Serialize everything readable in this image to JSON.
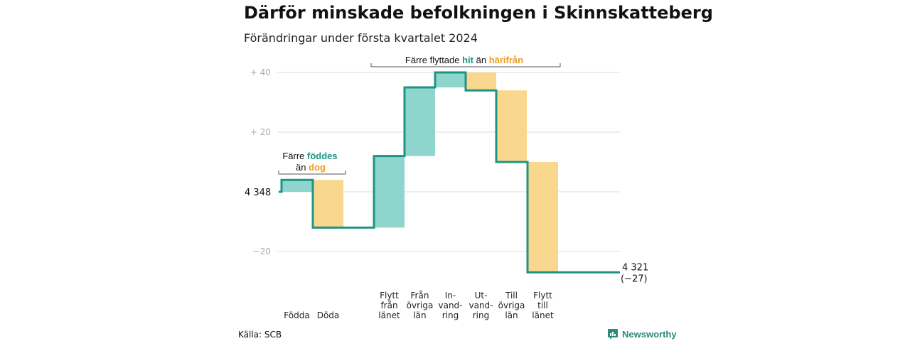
{
  "title": "Därför minskade befolkningen i Skinnskatteberg",
  "subtitle": "Förändringar under första kvartalet 2024",
  "source": "Källa: SCB",
  "brand": "Newsworthy",
  "colors": {
    "up": "#8ed6cd",
    "down": "#fad78f",
    "line": "#1e9482",
    "grid": "#dddddd",
    "hit": "#1e9482",
    "harifran": "#ef9c1f"
  },
  "annotations": {
    "birth": {
      "line1_pre": "Färre ",
      "line1_accent": "föddes",
      "line2_pre": "än ",
      "line2_accent": "dog"
    },
    "move": {
      "pre": "Färre flyttade ",
      "accent1": "hit",
      "mid": " än ",
      "accent2": "härifrån"
    }
  },
  "chart_data": {
    "type": "waterfall",
    "title": "Därför minskade befolkningen i Skinnskatteberg",
    "subtitle": "Förändringar under första kvartalet 2024",
    "baseline": 4348,
    "end_value": 4321,
    "end_label": "4 321",
    "end_change_label": "(−27)",
    "start_label": "4 348",
    "ylim": [
      -30,
      44
    ],
    "yticks": [
      {
        "value": 40,
        "label": "+  40"
      },
      {
        "value": 20,
        "label": "+  20"
      },
      {
        "value": 0,
        "label": ""
      },
      {
        "value": -20,
        "label": "−20"
      }
    ],
    "grid": true,
    "steps": [
      {
        "label": [
          "Födda"
        ],
        "value": 4,
        "kind": "inflow"
      },
      {
        "label": [
          "Döda"
        ],
        "value": -16,
        "kind": "outflow"
      },
      {
        "label": [
          "Flytt",
          "från",
          "länet"
        ],
        "value": 24,
        "kind": "inflow"
      },
      {
        "label": [
          "Från",
          "övriga",
          "län"
        ],
        "value": 23,
        "kind": "inflow"
      },
      {
        "label": [
          "In-",
          "vand-",
          "ring"
        ],
        "value": 5,
        "kind": "inflow"
      },
      {
        "label": [
          "Ut-",
          "vand-",
          "ring"
        ],
        "value": -6,
        "kind": "outflow"
      },
      {
        "label": [
          "Till",
          "övriga",
          "län"
        ],
        "value": -24,
        "kind": "outflow"
      },
      {
        "label": [
          "Flytt",
          "till",
          "länet"
        ],
        "value": -37,
        "kind": "outflow"
      }
    ]
  }
}
